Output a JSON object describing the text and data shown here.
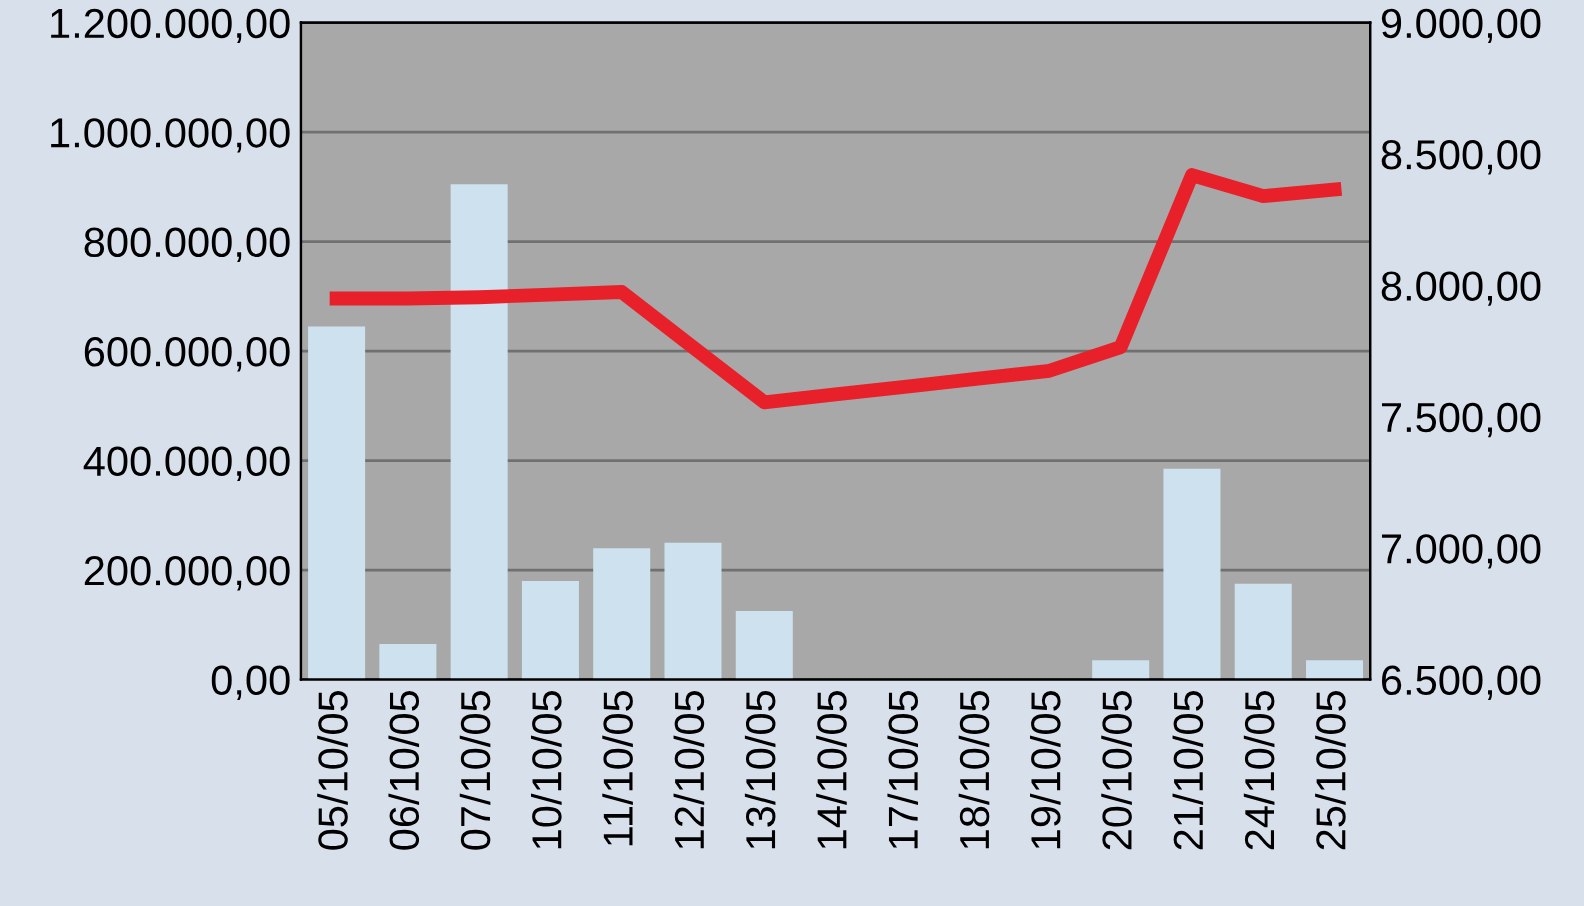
{
  "chart_data": {
    "type": "bar",
    "categories": [
      "05/10/05",
      "06/10/05",
      "07/10/05",
      "10/10/05",
      "11/10/05",
      "12/10/05",
      "13/10/05",
      "14/10/05",
      "17/10/05",
      "18/10/05",
      "19/10/05",
      "20/10/05",
      "21/10/05",
      "24/10/05",
      "25/10/05"
    ],
    "series": [
      {
        "color": "#cde2ee",
        "values": [
          645000,
          65000,
          905000,
          180000,
          240000,
          250000,
          125000,
          0,
          0,
          0,
          0,
          35000,
          385000,
          175000,
          35000
        ]
      },
      {
        "type": "line",
        "axis": "y2",
        "color": "#e8202a",
        "values": [
          7950,
          7950,
          7955,
          7965,
          7975,
          7765,
          7555,
          7585,
          7615,
          7645,
          7675,
          7765,
          8420,
          8340,
          8365
        ]
      }
    ],
    "ylim": [
      0,
      1200000
    ],
    "yticks": [
      {
        "value": 0,
        "label": "0,00"
      },
      {
        "value": 200000,
        "label": "200.000,00"
      },
      {
        "value": 400000,
        "label": "400.000,00"
      },
      {
        "value": 600000,
        "label": "600.000,00"
      },
      {
        "value": 800000,
        "label": "800.000,00"
      },
      {
        "value": 1000000,
        "label": "1.000.000,00"
      },
      {
        "value": 1200000,
        "label": "1.200.000,00"
      }
    ],
    "y2lim": [
      6500,
      9000
    ],
    "y2ticks": [
      {
        "value": 6500,
        "label": "6.500,00"
      },
      {
        "value": 7000,
        "label": "7.000,00"
      },
      {
        "value": 7500,
        "label": "7.500,00"
      },
      {
        "value": 8000,
        "label": "8.000,00"
      },
      {
        "value": 8500,
        "label": "8.500,00"
      },
      {
        "value": 9000,
        "label": "9.000,00"
      }
    ],
    "grid": "y",
    "marker": "none",
    "line_style": "solid"
  }
}
